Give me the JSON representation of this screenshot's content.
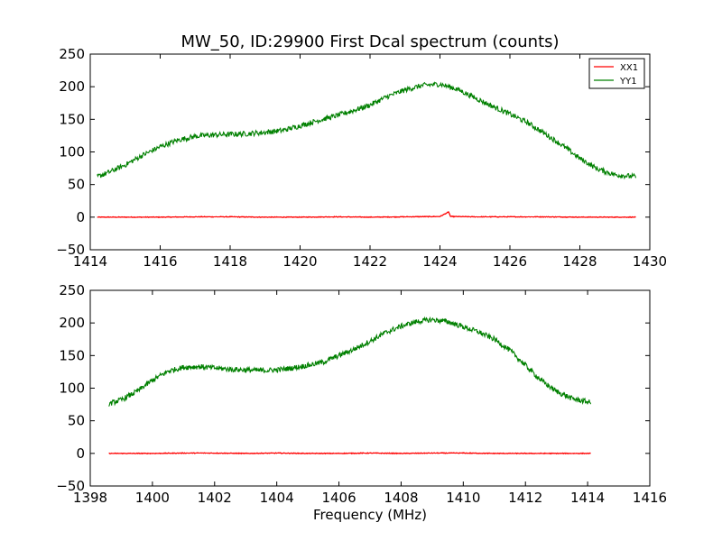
{
  "figure": {
    "title": "MW_50, ID:29900 First Dcal spectrum (counts)"
  },
  "chart_data": [
    {
      "type": "line",
      "title": "MW_50, ID:29900 First Dcal spectrum (counts)",
      "xlabel": "",
      "ylabel": "",
      "xlim": [
        1414,
        1430
      ],
      "ylim": [
        -50,
        250
      ],
      "xticks": [
        "1414",
        "1416",
        "1418",
        "1420",
        "1422",
        "1424",
        "1426",
        "1428",
        "1430"
      ],
      "yticks": [
        "−50",
        "0",
        "50",
        "100",
        "150",
        "200",
        "250"
      ],
      "legend": {
        "placement": "top-right",
        "entries": [
          "XX1",
          "YY1"
        ]
      },
      "grid": false,
      "series": [
        {
          "name": "XX1",
          "color": "#ff0000",
          "x": [
            1414.2,
            1415,
            1416,
            1417,
            1418,
            1419,
            1420,
            1421,
            1422,
            1423,
            1424,
            1424.25,
            1424.3,
            1425,
            1426,
            1427,
            1428,
            1429,
            1429.6
          ],
          "y": [
            0,
            0,
            0,
            0.5,
            0.5,
            0,
            0,
            0.5,
            0,
            0.5,
            1,
            8,
            1,
            0.5,
            0.5,
            0.5,
            0,
            0,
            0
          ]
        },
        {
          "name": "YY1",
          "color": "#008000",
          "x": [
            1414.2,
            1414.5,
            1415,
            1415.5,
            1416,
            1416.5,
            1417,
            1417.5,
            1418,
            1418.5,
            1419,
            1419.5,
            1420,
            1420.5,
            1421,
            1421.5,
            1422,
            1422.5,
            1423,
            1423.5,
            1424,
            1424.5,
            1425,
            1425.5,
            1426,
            1426.5,
            1427,
            1427.5,
            1428,
            1428.5,
            1429,
            1429.6
          ],
          "y": [
            62,
            68,
            80,
            95,
            108,
            118,
            124,
            126,
            127,
            128,
            130,
            133,
            140,
            148,
            155,
            163,
            172,
            185,
            195,
            202,
            204,
            196,
            183,
            170,
            158,
            145,
            128,
            110,
            90,
            74,
            65,
            62
          ]
        }
      ]
    },
    {
      "type": "line",
      "title": "",
      "xlabel": "Frequency (MHz)",
      "ylabel": "",
      "xlim": [
        1398,
        1416
      ],
      "ylim": [
        -50,
        250
      ],
      "xticks": [
        "1398",
        "1400",
        "1402",
        "1404",
        "1406",
        "1408",
        "1410",
        "1412",
        "1414",
        "1416"
      ],
      "yticks": [
        "−50",
        "0",
        "50",
        "100",
        "150",
        "200",
        "250"
      ],
      "grid": false,
      "series": [
        {
          "color": "#ff0000",
          "x": [
            1398.6,
            1399,
            1400,
            1401,
            1402,
            1403,
            1404,
            1405,
            1406,
            1407,
            1408,
            1409,
            1410,
            1411,
            1412,
            1413,
            1414,
            1414.1
          ],
          "y": [
            0,
            0,
            0,
            0.5,
            0.5,
            0,
            0.5,
            0,
            0,
            0.5,
            0,
            0.5,
            0.5,
            0,
            0,
            0,
            0,
            0
          ]
        },
        {
          "color": "#008000",
          "x": [
            1398.6,
            1399,
            1399.5,
            1400,
            1400.5,
            1401,
            1401.5,
            1402,
            1402.5,
            1403,
            1403.5,
            1404,
            1404.5,
            1405,
            1405.5,
            1406,
            1406.5,
            1407,
            1407.5,
            1408,
            1408.5,
            1409,
            1409.5,
            1410,
            1410.5,
            1411,
            1411.5,
            1412,
            1412.5,
            1413,
            1413.5,
            1414.1
          ],
          "y": [
            76,
            82,
            95,
            112,
            126,
            132,
            133,
            131,
            129,
            128,
            127,
            128,
            131,
            135,
            140,
            150,
            160,
            172,
            185,
            195,
            202,
            205,
            202,
            194,
            186,
            175,
            158,
            135,
            112,
            95,
            84,
            78
          ]
        }
      ]
    }
  ]
}
